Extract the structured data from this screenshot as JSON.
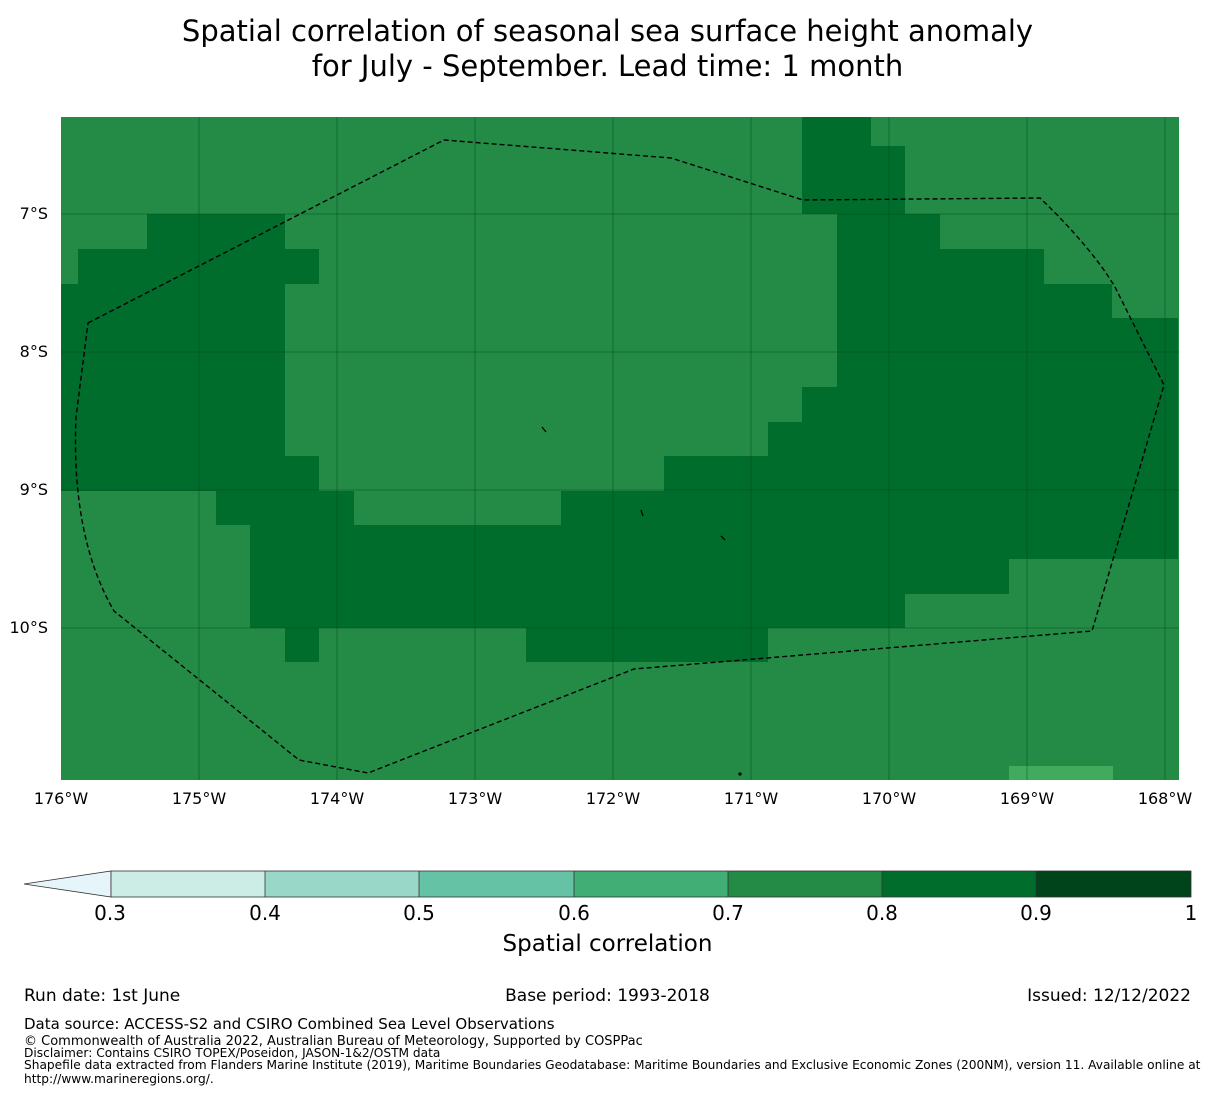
{
  "title": {
    "line1": "Spatial correlation of seasonal sea surface height anomaly",
    "line2": "for July - September. Lead time: 1 month"
  },
  "map": {
    "lat_labels": [
      "7°S",
      "8°S",
      "9°S",
      "10°S"
    ],
    "lon_labels": [
      "176°W",
      "175°W",
      "174°W",
      "173°W",
      "172°W",
      "171°W",
      "170°W",
      "169°W",
      "168°W"
    ],
    "extent": {
      "lon_min": -176.0,
      "lon_max": -167.9,
      "lat_north": -6.3,
      "lat_south": -11.1
    },
    "boundary_style": "dashed black line (EEZ)",
    "base_class_color": "#238b45",
    "high_class_color": "#006d2c",
    "low_class_color": "#41ab5d"
  },
  "colorbar": {
    "tick_labels": [
      "0.3",
      "0.4",
      "0.5",
      "0.6",
      "0.7",
      "0.8",
      "0.9",
      "1"
    ],
    "colors": [
      "#ccece6",
      "#99d8c9",
      "#66c2a4",
      "#41ae76",
      "#238b45",
      "#006d2c",
      "#00441b"
    ],
    "extend_color": "#e5f5f9",
    "label": "Spatial correlation"
  },
  "footer": {
    "run_date": "Run date: 1st June",
    "base_period": "Base period: 1993-2018",
    "issued": "Issued: 12/12/2022",
    "data_source": "Data source: ACCESS-S2 and CSIRO Combined Sea Level Observations",
    "copyright": "© Commonwealth of Australia 2022, Australian Bureau of Meteorology, Supported by COSPPac",
    "disclaimer": "Disclaimer: Contains CSIRO TOPEX/Poseidon, JASON-1&2/OSTM data",
    "shapefile_line1": "Shapefile data extracted from Flanders Marine Institute (2019), Maritime Boundaries Geodatabase: Maritime Boundaries and Exclusive Economic Zones (200NM), version 11. Available online at",
    "shapefile_line2": "http://www.marineregions.org/."
  }
}
